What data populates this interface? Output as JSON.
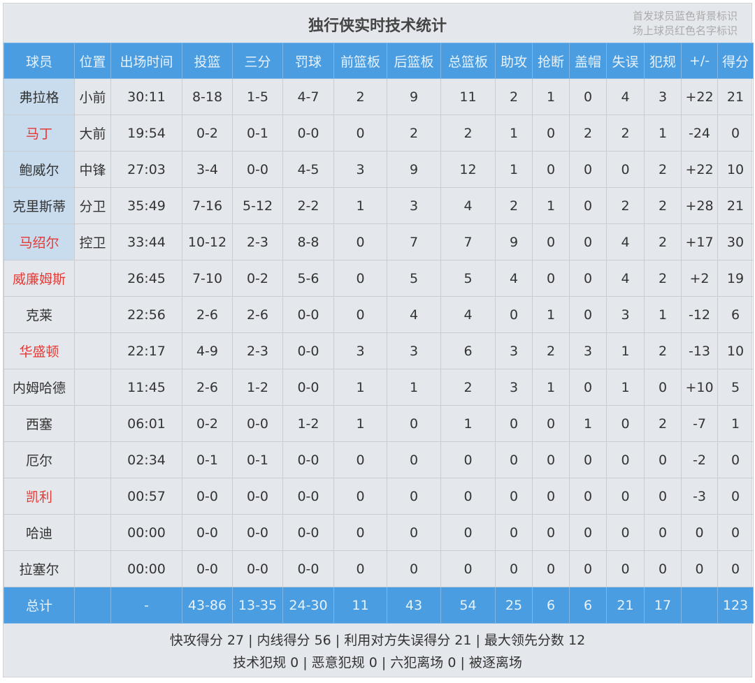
{
  "title": "独行侠实时技术统计",
  "legend": [
    "首发球员蓝色背景标识",
    "场上球员红色名字标识"
  ],
  "colors": {
    "header_bg": "#4a9de0",
    "starter_bg": "#c9dcee",
    "on_court_name": "#e53935"
  },
  "columns": [
    "球员",
    "位置",
    "出场时间",
    "投篮",
    "三分",
    "罚球",
    "前篮板",
    "后篮板",
    "总篮板",
    "助攻",
    "抢断",
    "盖帽",
    "失误",
    "犯规",
    "+/-",
    "得分"
  ],
  "players": [
    {
      "cells": [
        "弗拉格",
        "小前",
        "30:11",
        "8-18",
        "1-5",
        "4-7",
        "2",
        "9",
        "11",
        "2",
        "1",
        "0",
        "4",
        "3",
        "+22",
        "21"
      ],
      "starter": true,
      "on_court": false
    },
    {
      "cells": [
        "马丁",
        "大前",
        "19:54",
        "0-2",
        "0-1",
        "0-0",
        "0",
        "2",
        "2",
        "1",
        "0",
        "2",
        "2",
        "1",
        "-24",
        "0"
      ],
      "starter": true,
      "on_court": true
    },
    {
      "cells": [
        "鲍威尔",
        "中锋",
        "27:03",
        "3-4",
        "0-0",
        "4-5",
        "3",
        "9",
        "12",
        "1",
        "0",
        "0",
        "0",
        "2",
        "+22",
        "10"
      ],
      "starter": true,
      "on_court": false
    },
    {
      "cells": [
        "克里斯蒂",
        "分卫",
        "35:49",
        "7-16",
        "5-12",
        "2-2",
        "1",
        "3",
        "4",
        "2",
        "1",
        "0",
        "2",
        "2",
        "+28",
        "21"
      ],
      "starter": true,
      "on_court": false
    },
    {
      "cells": [
        "马绍尔",
        "控卫",
        "33:44",
        "10-12",
        "2-3",
        "8-8",
        "0",
        "7",
        "7",
        "9",
        "0",
        "0",
        "4",
        "2",
        "+17",
        "30"
      ],
      "starter": true,
      "on_court": true
    },
    {
      "cells": [
        "威廉姆斯",
        "",
        "26:45",
        "7-10",
        "0-2",
        "5-6",
        "0",
        "5",
        "5",
        "4",
        "0",
        "0",
        "4",
        "2",
        "+2",
        "19"
      ],
      "starter": false,
      "on_court": true
    },
    {
      "cells": [
        "克莱",
        "",
        "22:56",
        "2-6",
        "2-6",
        "0-0",
        "0",
        "4",
        "4",
        "0",
        "1",
        "0",
        "3",
        "1",
        "-12",
        "6"
      ],
      "starter": false,
      "on_court": false
    },
    {
      "cells": [
        "华盛顿",
        "",
        "22:17",
        "4-9",
        "2-3",
        "0-0",
        "3",
        "3",
        "6",
        "3",
        "2",
        "3",
        "1",
        "2",
        "-13",
        "10"
      ],
      "starter": false,
      "on_court": true
    },
    {
      "cells": [
        "内姆哈德",
        "",
        "11:45",
        "2-6",
        "1-2",
        "0-0",
        "1",
        "1",
        "2",
        "3",
        "1",
        "0",
        "1",
        "0",
        "+10",
        "5"
      ],
      "starter": false,
      "on_court": false
    },
    {
      "cells": [
        "西塞",
        "",
        "06:01",
        "0-2",
        "0-0",
        "1-2",
        "1",
        "0",
        "1",
        "0",
        "0",
        "1",
        "0",
        "2",
        "-7",
        "1"
      ],
      "starter": false,
      "on_court": false
    },
    {
      "cells": [
        "厄尔",
        "",
        "02:34",
        "0-1",
        "0-1",
        "0-0",
        "0",
        "0",
        "0",
        "0",
        "0",
        "0",
        "0",
        "0",
        "-2",
        "0"
      ],
      "starter": false,
      "on_court": false
    },
    {
      "cells": [
        "凯利",
        "",
        "00:57",
        "0-0",
        "0-0",
        "0-0",
        "0",
        "0",
        "0",
        "0",
        "0",
        "0",
        "0",
        "0",
        "-3",
        "0"
      ],
      "starter": false,
      "on_court": true
    },
    {
      "cells": [
        "哈迪",
        "",
        "00:00",
        "0-0",
        "0-0",
        "0-0",
        "0",
        "0",
        "0",
        "0",
        "0",
        "0",
        "0",
        "0",
        "0",
        "0"
      ],
      "starter": false,
      "on_court": false
    },
    {
      "cells": [
        "拉塞尔",
        "",
        "00:00",
        "0-0",
        "0-0",
        "0-0",
        "0",
        "0",
        "0",
        "0",
        "0",
        "0",
        "0",
        "0",
        "0",
        "0"
      ],
      "starter": false,
      "on_court": false
    }
  ],
  "total": [
    "总计",
    "",
    "-",
    "43-86",
    "13-35",
    "24-30",
    "11",
    "43",
    "54",
    "25",
    "6",
    "6",
    "21",
    "17",
    "",
    "123"
  ],
  "footer": {
    "line1": "快攻得分 27 | 内线得分 56 | 利用对方失误得分 21 | 最大领先分数 12",
    "line2": "技术犯规 0 | 恶意犯规 0 | 六犯离场 0 | 被逐离场"
  }
}
